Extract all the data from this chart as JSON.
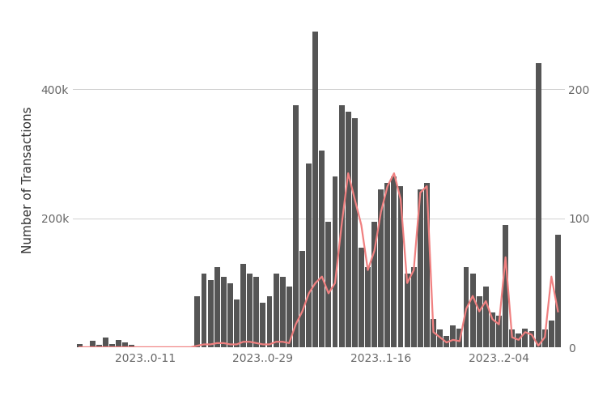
{
  "bar_color": "#555555",
  "line_color": "#f08080",
  "background_color": "#ffffff",
  "ylabel_left": "Number of Transactions",
  "ylim_left": [
    0,
    520000
  ],
  "ylim_right": [
    0,
    260
  ],
  "yticks_left": [
    0,
    200000,
    400000
  ],
  "ytick_labels_left": [
    "",
    "200k",
    "400k"
  ],
  "yticks_right": [
    0,
    100,
    200
  ],
  "xtick_labels": [
    "2023..0-11",
    "2023..0-29",
    "2023..1-16",
    "2023..2-04"
  ],
  "xtick_positions": [
    10,
    28,
    46,
    64
  ],
  "grid_color": "#d0d0d0",
  "bar_values": [
    6000,
    1500,
    10000,
    4000,
    16000,
    6000,
    12000,
    8000,
    4000,
    1500,
    1000,
    1500,
    1200,
    700,
    1000,
    800,
    1500,
    1200,
    80000,
    115000,
    105000,
    125000,
    110000,
    100000,
    75000,
    130000,
    115000,
    110000,
    70000,
    80000,
    115000,
    110000,
    95000,
    375000,
    150000,
    285000,
    490000,
    305000,
    195000,
    265000,
    375000,
    365000,
    355000,
    155000,
    125000,
    195000,
    245000,
    255000,
    265000,
    250000,
    115000,
    125000,
    245000,
    255000,
    45000,
    28000,
    18000,
    35000,
    30000,
    125000,
    115000,
    80000,
    95000,
    55000,
    50000,
    190000,
    28000,
    22000,
    30000,
    25000,
    440000,
    28000,
    42000,
    175000
  ],
  "line_values": [
    0.3,
    0.3,
    0.3,
    0.3,
    0.3,
    0.3,
    0.3,
    0.3,
    0.3,
    0.3,
    0.3,
    0.3,
    0.3,
    0.3,
    0.3,
    0.3,
    0.3,
    0.3,
    1.5,
    2.5,
    2.5,
    3.5,
    3.5,
    2.5,
    2.5,
    4.5,
    4.5,
    3.5,
    2.5,
    2.5,
    4.5,
    4.5,
    3.5,
    18,
    28,
    42,
    50,
    55,
    42,
    50,
    95,
    135,
    115,
    95,
    60,
    75,
    105,
    125,
    135,
    115,
    50,
    60,
    120,
    125,
    12,
    8,
    4,
    6,
    5,
    30,
    40,
    28,
    36,
    22,
    18,
    70,
    8,
    6,
    12,
    10,
    1.5,
    8,
    55,
    28
  ],
  "figsize": [
    7.5,
    4.88
  ],
  "dpi": 100
}
